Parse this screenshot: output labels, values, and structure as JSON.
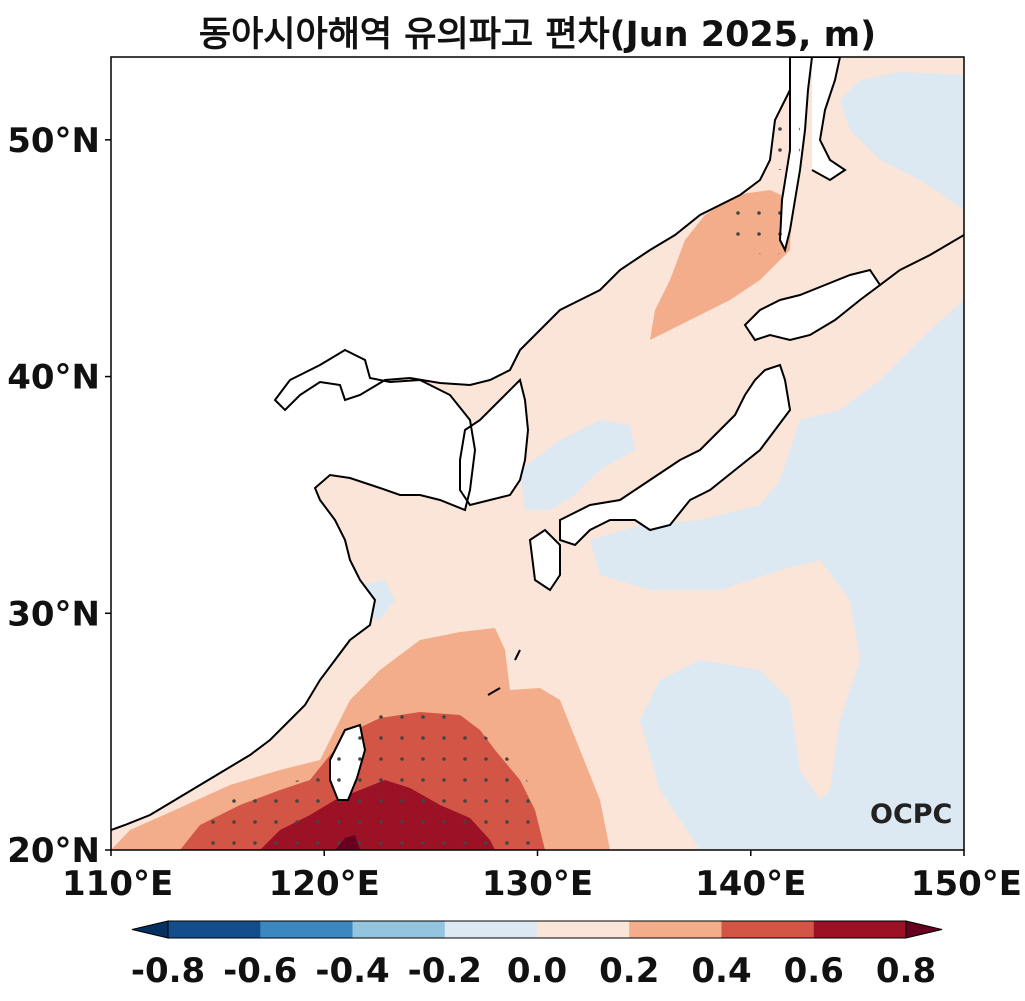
{
  "title": "동아시아해역 유의파고 편차(Jun 2025, m)",
  "logo_text": "OCPC",
  "axes": {
    "lat_ticks": [
      "20°N",
      "30°N",
      "40°N",
      "50°N"
    ],
    "lon_ticks": [
      "110°E",
      "120°E",
      "130°E",
      "140°E",
      "150°E"
    ],
    "lon_range": [
      110,
      150
    ],
    "lat_range": [
      20,
      53.5
    ]
  },
  "colorbar": {
    "ticks": [
      "-0.8",
      "-0.6",
      "-0.4",
      "-0.2",
      "0.0",
      "0.2",
      "0.4",
      "0.6",
      "0.8"
    ],
    "levels": [
      -0.8,
      -0.6,
      -0.4,
      -0.2,
      0.0,
      0.2,
      0.4,
      0.6,
      0.8
    ],
    "colors": [
      "#053061",
      "#134e8b",
      "#3b87c0",
      "#94c5df",
      "#dde9f2",
      "#fbe4d8",
      "#f3ad8b",
      "#d25546",
      "#9b1126",
      "#67001f"
    ],
    "extend": "both"
  },
  "chart_data": {
    "type": "heatmap",
    "title": "동아시아해역 유의파고 편차(Jun 2025, m)",
    "region_lon": [
      110,
      150
    ],
    "region_lat": [
      20,
      53.5
    ],
    "unit": "m",
    "anomaly_zones": [
      {
        "level": "0.6 to 0.8+",
        "region": "Luzon Strait / southeast of Taiwan, around 121-127°E, 20-23°N"
      },
      {
        "level": "0.4 to 0.6",
        "region": "South of Taiwan and around it, 114-130°E, 20-25°N"
      },
      {
        "level": "0.2 to 0.4",
        "region": "East China Sea south / northern South China Sea, 112-133°E, 20-29°N"
      },
      {
        "level": "0.2 to 0.4",
        "region": "Sea of Japan north / Tatar Strait area, around 134-141°E, 41-47°N"
      },
      {
        "level": "0.0 to 0.2",
        "region": "Yellow Sea, East China Sea, Sea of Japan, western Pacific coastal zone"
      },
      {
        "level": "-0.2 to 0.0",
        "region": "Open western Pacific east and south of Japan, Korea Strait, Bohai Sea, northeast corner"
      }
    ]
  }
}
